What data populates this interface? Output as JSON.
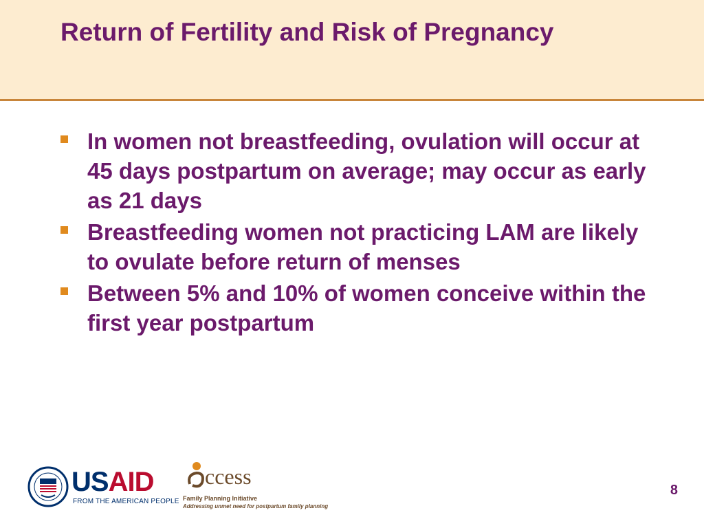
{
  "slide": {
    "title": "Return of Fertility and Risk of Pregnancy",
    "bullets": [
      {
        "text": "In women not breastfeeding, ovulation will occur at 45 days postpartum on average; may occur as early as 21 days"
      },
      {
        "text": "Breastfeeding women not practicing LAM are likely to ovulate before return of menses"
      },
      {
        "text": "Between 5% and 10% of women conceive within the first year postpartum"
      }
    ],
    "page_number": "8"
  },
  "footer": {
    "usaid": {
      "us": "US",
      "aid": "AID",
      "tagline": "FROM THE AMERICAN PEOPLE",
      "seal_icon": "usaid-seal-icon"
    },
    "access": {
      "subtitle": "Family Planning Initiative",
      "tagline": "Addressing unmet need for postpartum family planning"
    }
  },
  "colors": {
    "title": "#6b1a6b",
    "header_bg": "#fdecd0",
    "header_rule": "#c8853a",
    "bullet_marker": "#e08a1e",
    "usaid_blue": "#002f6c",
    "usaid_red": "#ba0c2f"
  }
}
